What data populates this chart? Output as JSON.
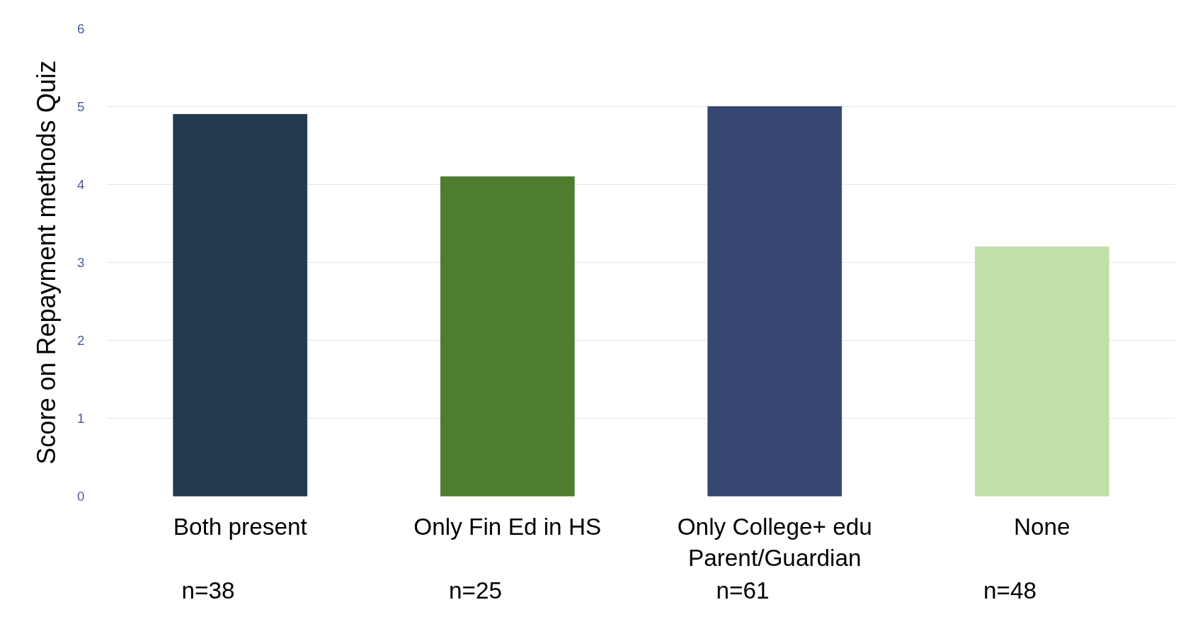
{
  "chart_data": {
    "type": "bar",
    "ylabel": "Score on Repayment methods Quiz",
    "categories": [
      "Both present",
      "Only Fin Ed in HS",
      "Only College+ edu\nParent/Guardian",
      "None"
    ],
    "values": [
      4.9,
      4.1,
      5.0,
      3.2
    ],
    "colors": [
      "#223b4e",
      "#4e7d2f",
      "#354672",
      "#c0e0a8"
    ],
    "ylim": [
      0,
      6
    ],
    "yticks": [
      0,
      1,
      2,
      3,
      4,
      5,
      6
    ],
    "grid": "y",
    "annotations": [
      "n=38",
      "n=25",
      "n=61",
      "n=48"
    ]
  }
}
